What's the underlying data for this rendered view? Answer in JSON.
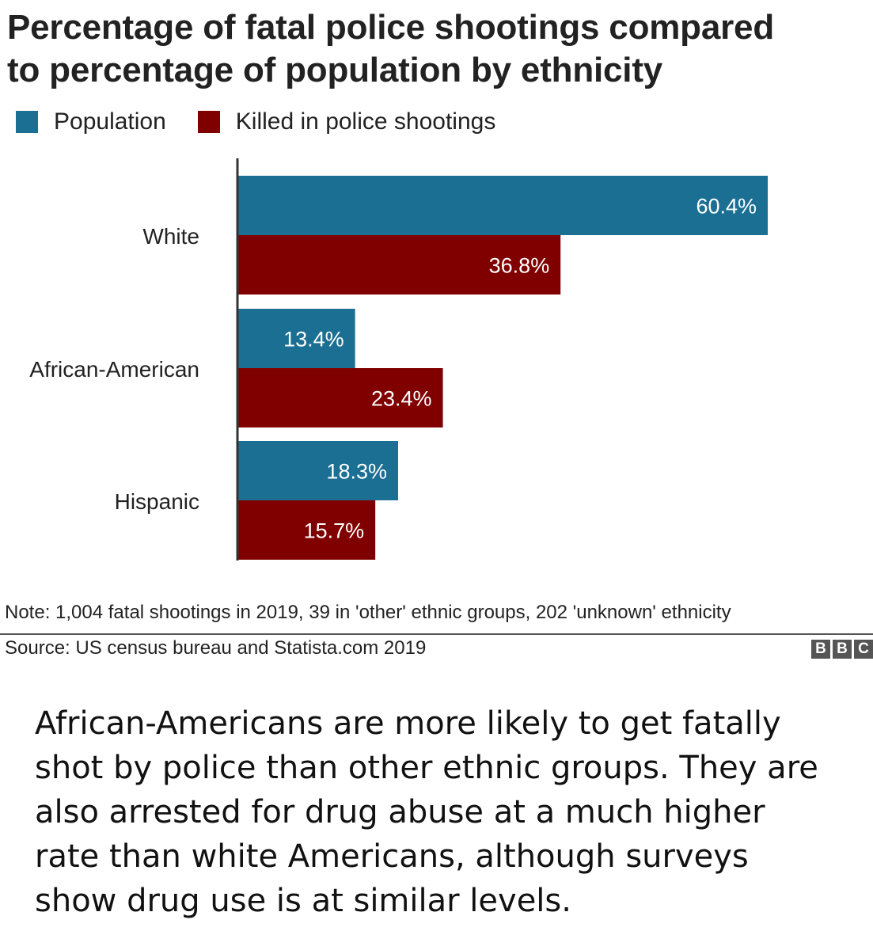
{
  "title_lines": [
    "Percentage of fatal police shootings compared",
    "to percentage of population by ethnicity"
  ],
  "colors": {
    "population": "#1a6f93",
    "killed": "#800000",
    "text": "#222222"
  },
  "chart_data": {
    "type": "bar",
    "orientation": "horizontal",
    "title": "Percentage of fatal police shootings compared to percentage of population by ethnicity",
    "categories": [
      "White",
      "African-American",
      "Hispanic"
    ],
    "series": [
      {
        "name": "Population",
        "values": [
          60.4,
          13.4,
          18.3
        ],
        "labels": [
          "60.4%",
          "13.4%",
          "18.3%"
        ]
      },
      {
        "name": "Killed in police shootings",
        "values": [
          36.8,
          23.4,
          15.7
        ],
        "labels": [
          "36.8%",
          "23.4%",
          "15.7%"
        ]
      }
    ],
    "xlim": [
      0,
      60.4
    ],
    "grid": false,
    "legend": "top-left"
  },
  "note": "Note: 1,004 fatal shootings in 2019, 39 in 'other' ethnic groups, 202 'unknown' ethnicity",
  "source": "Source: US census bureau and Statista.com 2019",
  "logo": "BBC",
  "caption_lines": [
    "African-Americans are more likely to get fatally",
    "shot by police than other ethnic groups. They are",
    "also arrested for drug abuse at a much higher",
    "rate than white Americans, although surveys",
    "show drug use is at similar levels."
  ]
}
